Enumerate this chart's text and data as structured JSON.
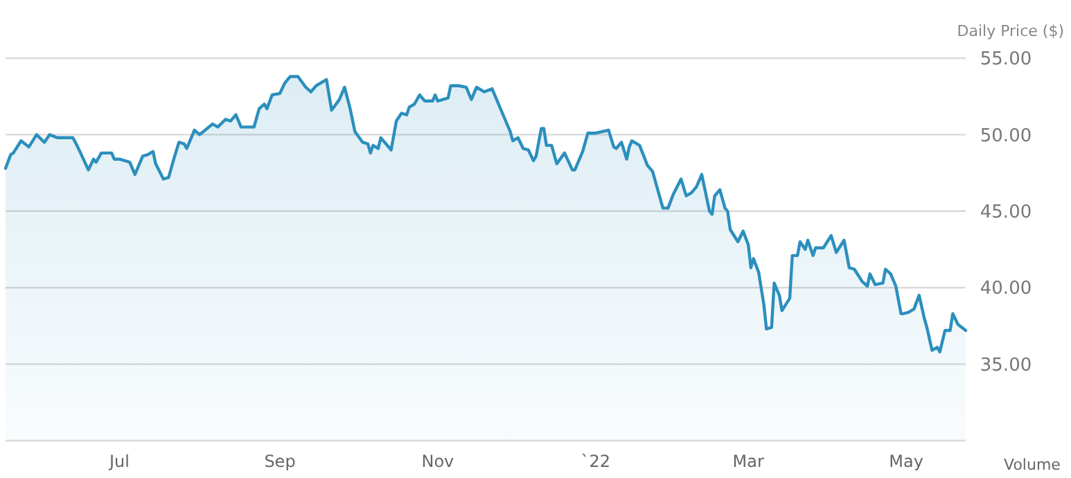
{
  "chart_data": {
    "type": "area",
    "ylabel": "Daily Price ($)",
    "annotations": [
      "Volume"
    ],
    "grid": "y",
    "xlim": [
      "2021-05-18",
      "2022-05-24"
    ],
    "xticks": [
      {
        "value": "2021-07-01",
        "label": "Jul"
      },
      {
        "value": "2021-09-01",
        "label": "Sep"
      },
      {
        "value": "2021-11-01",
        "label": "Nov"
      },
      {
        "value": "2022-01-01",
        "label": "`22"
      },
      {
        "value": "2022-03-01",
        "label": "Mar"
      },
      {
        "value": "2022-05-01",
        "label": "May"
      }
    ],
    "ylim": [
      30,
      55
    ],
    "yticks": [
      {
        "value": 35,
        "label": "35.00"
      },
      {
        "value": 40,
        "label": "40.00"
      },
      {
        "value": 45,
        "label": "45.00"
      },
      {
        "value": 50,
        "label": "50.00"
      },
      {
        "value": 55,
        "label": "55.00"
      }
    ],
    "x": [
      "2021-05-18",
      "2021-05-20",
      "2021-05-21",
      "2021-05-24",
      "2021-05-27",
      "2021-05-30",
      "2021-06-02",
      "2021-06-04",
      "2021-06-07",
      "2021-06-13",
      "2021-06-14",
      "2021-06-16",
      "2021-06-19",
      "2021-06-21",
      "2021-06-22",
      "2021-06-24",
      "2021-06-28",
      "2021-06-29",
      "2021-07-01",
      "2021-07-05",
      "2021-07-07",
      "2021-07-10",
      "2021-07-12",
      "2021-07-14",
      "2021-07-15",
      "2021-07-18",
      "2021-07-20",
      "2021-07-22",
      "2021-07-24",
      "2021-07-26",
      "2021-07-27",
      "2021-07-30",
      "2021-08-01",
      "2021-08-06",
      "2021-08-08",
      "2021-08-11",
      "2021-08-13",
      "2021-08-15",
      "2021-08-17",
      "2021-08-22",
      "2021-08-24",
      "2021-08-26",
      "2021-08-27",
      "2021-08-29",
      "2021-09-01",
      "2021-09-03",
      "2021-09-05",
      "2021-09-08",
      "2021-09-11",
      "2021-09-13",
      "2021-09-15",
      "2021-09-19",
      "2021-09-21",
      "2021-09-24",
      "2021-09-26",
      "2021-09-28",
      "2021-09-30",
      "2021-10-03",
      "2021-10-05",
      "2021-10-06",
      "2021-10-07",
      "2021-10-09",
      "2021-10-10",
      "2021-10-14",
      "2021-10-16",
      "2021-10-18",
      "2021-10-20",
      "2021-10-21",
      "2021-10-23",
      "2021-10-25",
      "2021-10-27",
      "2021-10-30",
      "2021-10-31",
      "2021-11-01",
      "2021-11-05",
      "2021-11-06",
      "2021-11-09",
      "2021-11-12",
      "2021-11-14",
      "2021-11-16",
      "2021-11-19",
      "2021-11-22",
      "2021-11-26",
      "2021-11-29",
      "2021-11-30",
      "2021-12-02",
      "2021-12-04",
      "2021-12-06",
      "2021-12-08",
      "2021-12-09",
      "2021-12-11",
      "2021-12-12",
      "2021-12-13",
      "2021-12-15",
      "2021-12-17",
      "2021-12-20",
      "2021-12-23",
      "2021-12-24",
      "2021-12-27",
      "2021-12-29",
      "2022-01-01",
      "2022-01-06",
      "2022-01-08",
      "2022-01-09",
      "2022-01-11",
      "2022-01-13",
      "2022-01-14",
      "2022-01-15",
      "2022-01-18",
      "2022-01-21",
      "2022-01-23",
      "2022-01-25",
      "2022-01-27",
      "2022-01-29",
      "2022-01-31",
      "2022-02-03",
      "2022-02-05",
      "2022-02-07",
      "2022-02-09",
      "2022-02-11",
      "2022-02-12",
      "2022-02-14",
      "2022-02-15",
      "2022-02-16",
      "2022-02-18",
      "2022-02-20",
      "2022-02-21",
      "2022-02-22",
      "2022-02-25",
      "2022-02-27",
      "2022-03-01",
      "2022-03-02",
      "2022-03-03",
      "2022-03-05",
      "2022-03-07",
      "2022-03-08",
      "2022-03-10",
      "2022-03-11",
      "2022-03-13",
      "2022-03-14",
      "2022-03-17",
      "2022-03-18",
      "2022-03-20",
      "2022-03-21",
      "2022-03-23",
      "2022-03-24",
      "2022-03-26",
      "2022-03-27",
      "2022-03-30",
      "2022-04-02",
      "2022-04-04",
      "2022-04-07",
      "2022-04-09",
      "2022-04-11",
      "2022-04-14",
      "2022-04-16",
      "2022-04-17",
      "2022-04-19",
      "2022-04-22",
      "2022-04-23",
      "2022-04-25",
      "2022-04-27",
      "2022-04-29",
      "2022-04-30",
      "2022-05-02",
      "2022-05-04",
      "2022-05-06",
      "2022-05-08",
      "2022-05-09",
      "2022-05-11",
      "2022-05-13",
      "2022-05-14",
      "2022-05-16",
      "2022-05-18",
      "2022-05-19",
      "2022-05-21",
      "2022-05-24"
    ],
    "series": [
      {
        "color": "#2b8fbd",
        "values": [
          47.8,
          48.7,
          48.8,
          49.6,
          49.2,
          50.0,
          49.5,
          50.0,
          49.8,
          49.8,
          49.5,
          48.8,
          47.7,
          48.4,
          48.2,
          48.8,
          48.8,
          48.4,
          48.4,
          48.2,
          47.4,
          48.6,
          48.7,
          48.9,
          48.1,
          47.1,
          47.2,
          48.4,
          49.5,
          49.4,
          49.1,
          50.3,
          50.0,
          50.7,
          50.5,
          51.0,
          50.9,
          51.3,
          50.5,
          50.5,
          51.7,
          52.0,
          51.7,
          52.6,
          52.7,
          53.4,
          53.8,
          53.8,
          53.1,
          52.8,
          53.2,
          53.6,
          51.6,
          52.3,
          53.1,
          51.8,
          50.2,
          49.5,
          49.4,
          48.8,
          49.3,
          49.1,
          49.8,
          49.0,
          50.9,
          51.4,
          51.3,
          51.8,
          52.0,
          52.6,
          52.2,
          52.2,
          52.6,
          52.2,
          52.4,
          53.2,
          53.2,
          53.1,
          52.3,
          53.1,
          52.8,
          53.0,
          51.4,
          50.2,
          49.6,
          49.8,
          49.1,
          49.0,
          48.3,
          48.6,
          50.4,
          50.4,
          49.3,
          49.3,
          48.1,
          48.8,
          47.7,
          47.7,
          48.9,
          50.1,
          50.1,
          50.3,
          49.2,
          49.1,
          49.5,
          48.4,
          49.2,
          49.6,
          49.3,
          48.0,
          47.6,
          46.4,
          45.2,
          45.2,
          46.1,
          47.1,
          46.0,
          46.2,
          46.6,
          47.4,
          46.6,
          45.0,
          44.8,
          46.0,
          46.4,
          45.2,
          45.0,
          43.8,
          43.0,
          43.7,
          42.8,
          41.3,
          41.9,
          41.0,
          38.9,
          37.3,
          37.4,
          40.3,
          39.5,
          38.5,
          39.3,
          42.1,
          42.1,
          43.0,
          42.5,
          43.1,
          42.1,
          42.6,
          42.6,
          43.4,
          42.3,
          43.1,
          41.3,
          41.2,
          40.4,
          40.1,
          40.9,
          40.2,
          40.3,
          41.2,
          40.9,
          40.1,
          38.3,
          38.3,
          38.4,
          38.6,
          39.5,
          38.0,
          37.4,
          35.9,
          36.1,
          35.8,
          37.2,
          37.2,
          38.3,
          37.6,
          37.2
        ]
      }
    ]
  }
}
